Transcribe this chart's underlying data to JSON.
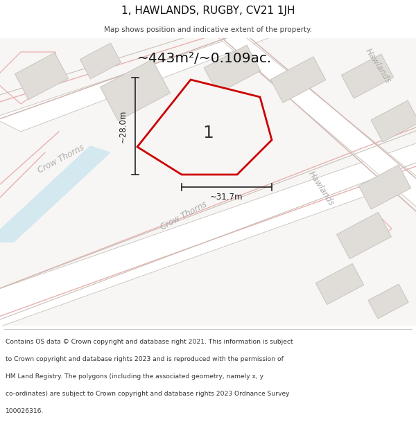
{
  "title": "1, HAWLANDS, RUGBY, CV21 1JH",
  "subtitle": "Map shows position and indicative extent of the property.",
  "area_text": "~443m²/~0.109ac.",
  "plot_number": "1",
  "dim_width": "~31.7m",
  "dim_height": "~28.0m",
  "footer_lines": [
    "Contains OS data © Crown copyright and database right 2021. This information is subject",
    "to Crown copyright and database rights 2023 and is reproduced with the permission of",
    "HM Land Registry. The polygons (including the associated geometry, namely x, y",
    "co-ordinates) are subject to Crown copyright and database rights 2023 Ordnance Survey",
    "100026316."
  ],
  "map_bg": "#f7f6f4",
  "road_fill": "#ffffff",
  "road_line_color": "#c8c0b8",
  "pink_line_color": "#e8b0b0",
  "plot_fill": "#f7f6f4",
  "plot_stroke": "#cc0000",
  "building_fill": "#e0ddd8",
  "building_stroke": "#c8c4c0",
  "road_label_color": "#aaaaaa",
  "blue_area_color": "#d4e8f0",
  "dim_line_color": "#222222",
  "title_color": "#111111",
  "footer_color": "#333333"
}
